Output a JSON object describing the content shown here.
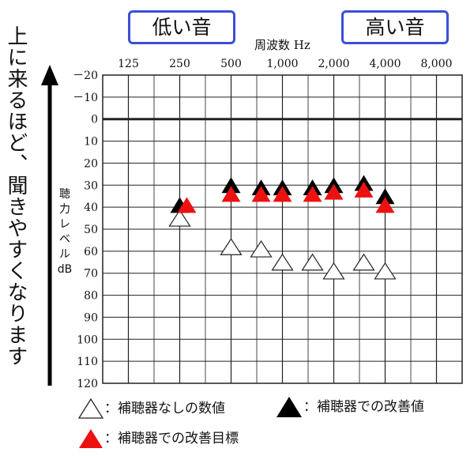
{
  "badges": {
    "low": "低い音",
    "high": "高い音"
  },
  "caption": "上に来るほど、聞きやすくなります",
  "chart_data": {
    "type": "scatter",
    "title": "周波数 Hz",
    "xlabel": "周波数 Hz",
    "ylabel": "聴力レベル dB",
    "ylabel_lines": [
      "聴",
      "力",
      "レ",
      "ベ",
      "ル",
      "dB"
    ],
    "x_scale": "log2",
    "x_ticks": [
      "125",
      "250",
      "500",
      "1,000",
      "2,000",
      "4,000",
      "8,000"
    ],
    "x_tick_values": [
      125,
      250,
      500,
      1000,
      2000,
      4000,
      8000
    ],
    "y_ticks": [
      "－20",
      "－10",
      "0",
      "10",
      "20",
      "30",
      "40",
      "50",
      "60",
      "70",
      "80",
      "90",
      "100",
      "110",
      "120"
    ],
    "y_tick_values": [
      -20,
      -10,
      0,
      10,
      20,
      30,
      40,
      50,
      60,
      70,
      80,
      90,
      100,
      110,
      120
    ],
    "ylim": [
      -20,
      120
    ],
    "y_inverted": true,
    "grid": true,
    "series": [
      {
        "name": "補聴器なしの数値",
        "marker": "open-triangle",
        "color": "#ffffff",
        "points": [
          {
            "x": 250,
            "y": 45
          },
          {
            "x": 500,
            "y": 58
          },
          {
            "x": 750,
            "y": 59
          },
          {
            "x": 1000,
            "y": 65
          },
          {
            "x": 1500,
            "y": 65
          },
          {
            "x": 2000,
            "y": 69
          },
          {
            "x": 3000,
            "y": 65
          },
          {
            "x": 4000,
            "y": 69
          }
        ]
      },
      {
        "name": "補聴器での改善値",
        "marker": "filled-triangle",
        "color": "#000000",
        "points": [
          {
            "x": 250,
            "y": 39
          },
          {
            "x": 500,
            "y": 30
          },
          {
            "x": 750,
            "y": 31
          },
          {
            "x": 1000,
            "y": 31
          },
          {
            "x": 1500,
            "y": 31
          },
          {
            "x": 2000,
            "y": 30
          },
          {
            "x": 3000,
            "y": 29
          },
          {
            "x": 4000,
            "y": 35
          }
        ]
      },
      {
        "name": "補聴器での改善目標",
        "marker": "filled-triangle",
        "color": "#ee1111",
        "points": [
          {
            "x": 275,
            "y": 39
          },
          {
            "x": 500,
            "y": 34
          },
          {
            "x": 750,
            "y": 34
          },
          {
            "x": 1000,
            "y": 34
          },
          {
            "x": 1500,
            "y": 34
          },
          {
            "x": 2000,
            "y": 33
          },
          {
            "x": 3000,
            "y": 32
          },
          {
            "x": 4000,
            "y": 39
          }
        ]
      }
    ]
  },
  "legend": {
    "none": "：補聴器なしの数値",
    "improved": "：補聴器での改善値",
    "target": "：補聴器での改善目標"
  }
}
